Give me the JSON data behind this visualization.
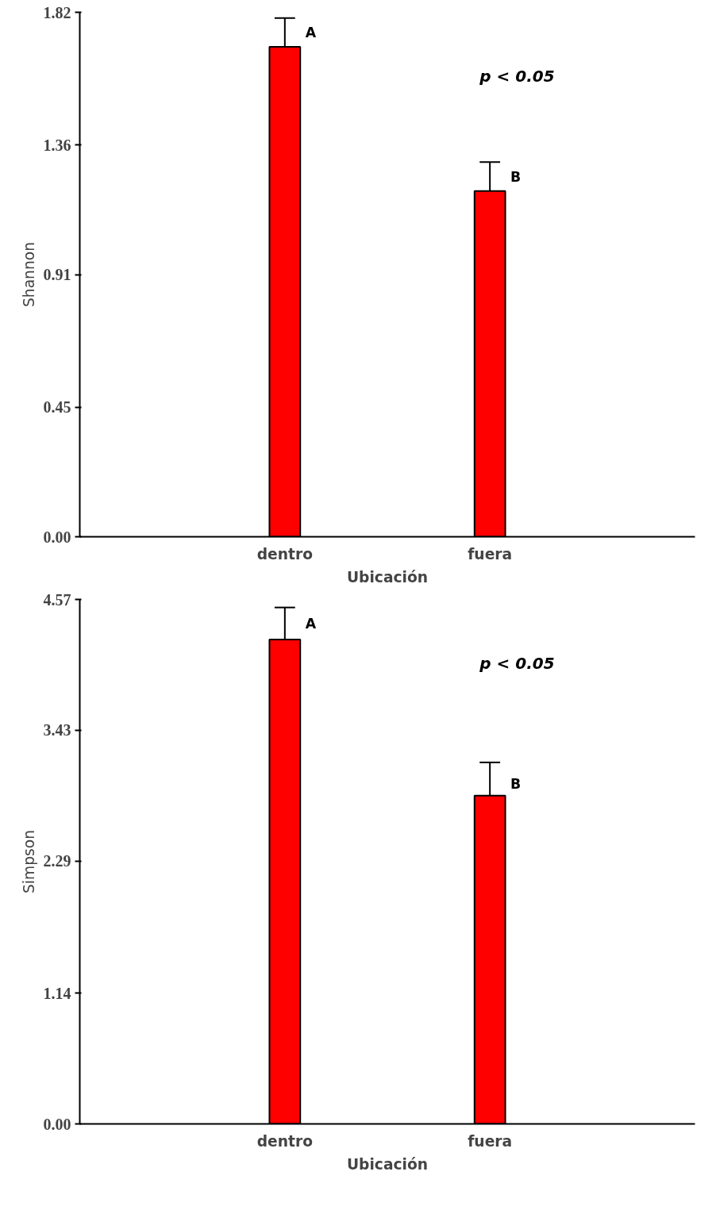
{
  "chart_data": [
    {
      "type": "bar",
      "xlabel": "Ubicación",
      "ylabel": "Shannon",
      "categories": [
        "dentro",
        "fuera"
      ],
      "series": [
        {
          "color": "#ff0000",
          "values": [
            1.7,
            1.2
          ],
          "errors": [
            [
              1.7,
              1.8
            ],
            [
              1.2,
              1.3
            ]
          ]
        }
      ],
      "ylim": [
        0,
        1.82
      ],
      "yticks": [
        {
          "value": 0,
          "label": "0.00"
        },
        0.45,
        0.91,
        1.36,
        1.82
      ],
      "grid": false,
      "annotations": [
        {
          "text": "A",
          "x": "dentro",
          "y": 1.75
        },
        {
          "text": "B",
          "x": "fuera",
          "y": 1.25
        },
        "p < 0.05"
      ]
    },
    {
      "type": "bar",
      "xlabel": "Ubicación",
      "ylabel": "Simpson",
      "categories": [
        "dentro",
        "fuera"
      ],
      "series": [
        {
          "color": "#ff0000",
          "values": [
            4.22,
            2.86
          ],
          "errors": [
            [
              4.22,
              4.5
            ],
            [
              2.86,
              3.15
            ]
          ]
        }
      ],
      "ylim": [
        0,
        4.57
      ],
      "yticks": [
        {
          "value": 0,
          "label": "0.00"
        },
        1.14,
        2.29,
        3.43,
        4.57
      ],
      "grid": false,
      "annotations": [
        {
          "text": "A",
          "x": "dentro",
          "y": 4.36
        },
        {
          "text": "B",
          "x": "fuera",
          "y": 2.96
        },
        "p < 0.05"
      ]
    }
  ]
}
